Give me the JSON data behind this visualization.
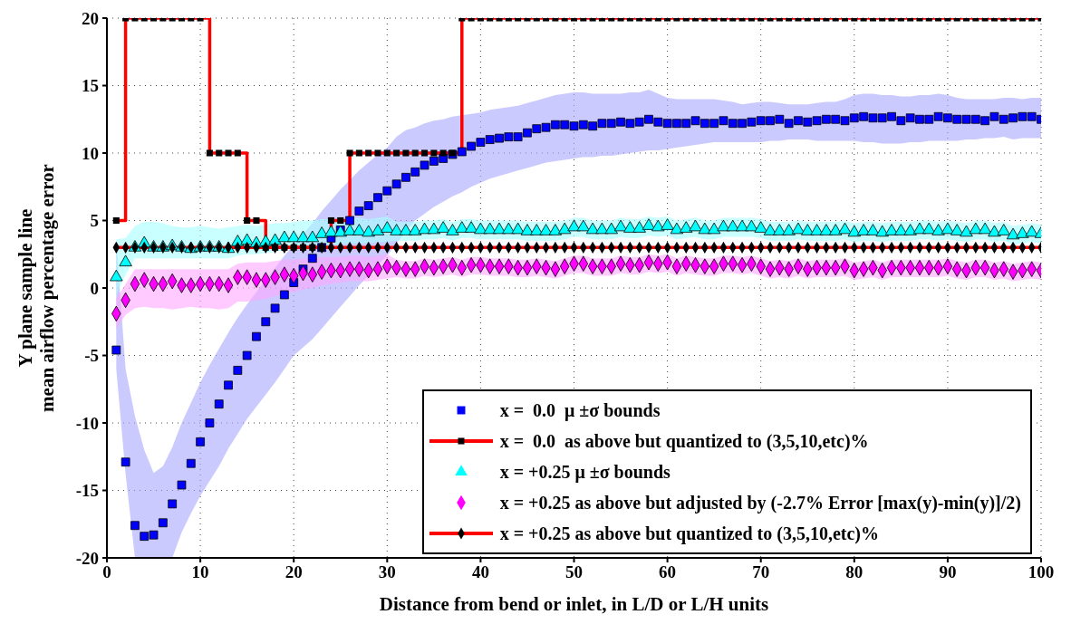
{
  "chart_data": {
    "type": "scatter",
    "xlabel": "Distance from bend or inlet, in L/D or L/H units",
    "ylabel": "Y plane sample line\nmean airflow percentage error",
    "xlim": [
      0,
      100
    ],
    "xticks": [
      0,
      10,
      20,
      30,
      40,
      50,
      60,
      70,
      80,
      90,
      100
    ],
    "ylim": [
      -20,
      20
    ],
    "yticks": [
      -20,
      -15,
      -10,
      -5,
      0,
      5,
      10,
      15,
      20
    ],
    "grid": true,
    "legend": "bottom right",
    "x": [
      1,
      2,
      3,
      4,
      5,
      6,
      7,
      8,
      9,
      10,
      11,
      12,
      13,
      14,
      15,
      16,
      17,
      18,
      19,
      20,
      21,
      22,
      23,
      24,
      25,
      26,
      27,
      28,
      29,
      30,
      31,
      32,
      33,
      34,
      35,
      36,
      37,
      38,
      39,
      40,
      41,
      42,
      43,
      44,
      45,
      46,
      47,
      48,
      49,
      50,
      51,
      52,
      53,
      54,
      55,
      56,
      57,
      58,
      59,
      60,
      61,
      62,
      63,
      64,
      65,
      66,
      67,
      68,
      69,
      70,
      71,
      72,
      73,
      74,
      75,
      76,
      77,
      78,
      79,
      80,
      81,
      82,
      83,
      84,
      85,
      86,
      87,
      88,
      89,
      90,
      91,
      92,
      93,
      94,
      95,
      96,
      97,
      98,
      99,
      100
    ],
    "series": [
      {
        "name": "x =  0.0  μ ±σ bounds",
        "marker": "square",
        "color": "#0000ff",
        "values": [
          -4.6,
          -12.9,
          -17.6,
          -18.4,
          -18.3,
          -17.4,
          -16.0,
          -14.6,
          -13.0,
          -11.4,
          -10.0,
          -8.6,
          -7.2,
          -6.1,
          -5.0,
          -3.6,
          -2.5,
          -1.5,
          -0.5,
          0.4,
          1.4,
          2.2,
          3.0,
          3.7,
          4.3,
          5.0,
          5.7,
          6.1,
          6.7,
          7.2,
          7.7,
          8.2,
          8.6,
          9.1,
          9.4,
          9.6,
          9.9,
          10.1,
          10.5,
          10.8,
          11.0,
          11.1,
          11.2,
          11.2,
          11.5,
          11.8,
          11.9,
          12.1,
          12.1,
          12.0,
          12.1,
          12.0,
          12.2,
          12.2,
          12.3,
          12.2,
          12.3,
          12.5,
          12.3,
          12.2,
          12.2,
          12.2,
          12.4,
          12.2,
          12.2,
          12.4,
          12.2,
          12.2,
          12.3,
          12.4,
          12.4,
          12.5,
          12.2,
          12.4,
          12.3,
          12.4,
          12.5,
          12.5,
          12.4,
          12.6,
          12.7,
          12.6,
          12.6,
          12.7,
          12.4,
          12.6,
          12.5,
          12.5,
          12.7,
          12.6,
          12.5,
          12.5,
          12.5,
          12.4,
          12.7,
          12.5,
          12.6,
          12.7,
          12.7,
          12.5
        ],
        "lower": [
          -6,
          -13.8,
          -20,
          -20,
          -20,
          -20,
          -20,
          -18.1,
          -16.7,
          -15.4,
          -14.3,
          -13.2,
          -11.9,
          -10.8,
          -9.7,
          -8.8,
          -7.9,
          -7.0,
          -6.0,
          -5.0,
          -4.4,
          -3.8,
          -3.0,
          -2.2,
          -1.4,
          -0.6,
          0.2,
          0.9,
          1.7,
          2.4,
          3.3,
          4.2,
          5.0,
          5.5,
          6.0,
          6.4,
          6.8,
          7.1,
          7.5,
          7.8,
          8.1,
          8.3,
          8.5,
          8.7,
          8.9,
          9.1,
          9.3,
          9.4,
          9.5,
          9.6,
          9.7,
          9.7,
          9.8,
          9.8,
          9.9,
          10.0,
          10.1,
          10.2,
          10.2,
          10.3,
          10.4,
          10.5,
          10.6,
          10.7,
          10.8,
          10.8,
          10.8,
          10.8,
          10.8,
          10.8,
          10.9,
          10.9,
          11.0,
          11.0,
          11.0,
          10.9,
          10.9,
          10.9,
          10.9,
          10.9,
          10.8,
          10.8,
          10.7,
          10.7,
          10.7,
          10.8,
          10.8,
          10.9,
          10.9,
          10.9,
          10.9,
          11.0,
          11.0,
          11.1,
          11.1,
          11.2,
          11.0,
          11.1,
          11.1,
          11.1
        ],
        "upper": [
          3.5,
          -6,
          -9.5,
          -12,
          -13.7,
          -13.2,
          -11.8,
          -10,
          -8.5,
          -7,
          -5.7,
          -4.5,
          -3.3,
          -2.2,
          -1.2,
          -0.3,
          0.6,
          1.5,
          2.4,
          3.2,
          4.0,
          4.8,
          5.7,
          6.5,
          7.3,
          8.0,
          8.7,
          9.3,
          9.9,
          10.4,
          11.2,
          11.7,
          11.9,
          12.2,
          12.4,
          12.5,
          12.7,
          12.8,
          12.9,
          13.0,
          13.2,
          13.3,
          13.4,
          13.5,
          13.7,
          13.9,
          14.1,
          14.3,
          14.4,
          14.5,
          14.5,
          14.4,
          14.4,
          14.4,
          14.4,
          14.5,
          14.5,
          14.7,
          14.4,
          14.1,
          14.0,
          14.0,
          14.0,
          14.0,
          14.0,
          13.9,
          13.8,
          13.6,
          13.7,
          13.8,
          13.8,
          13.7,
          13.6,
          13.6,
          13.6,
          13.7,
          13.8,
          13.8,
          14.0,
          14.3,
          14.4,
          14.4,
          14.3,
          14.3,
          14.2,
          14.2,
          14.3,
          14.3,
          14.4,
          14.3,
          14.1,
          14.0,
          14.0,
          14.0,
          14.0,
          14.1,
          14.1,
          14.0,
          14.1,
          14.1
        ]
      },
      {
        "name": "x =  0.0  as above but quantized to (3,5,10,etc)%",
        "type": "step",
        "marker": "square",
        "color": "#ff0000",
        "values": [
          5,
          20,
          20,
          20,
          20,
          20,
          20,
          20,
          20,
          20,
          10,
          10,
          10,
          10,
          5,
          5,
          3,
          3,
          3,
          3,
          3,
          3,
          3,
          5,
          5,
          10,
          10,
          10,
          10,
          10,
          10,
          10,
          10,
          10,
          10,
          10,
          10,
          20,
          20,
          20,
          20,
          20,
          20,
          20,
          20,
          20,
          20,
          20,
          20,
          20,
          20,
          20,
          20,
          20,
          20,
          20,
          20,
          20,
          20,
          20,
          20,
          20,
          20,
          20,
          20,
          20,
          20,
          20,
          20,
          20,
          20,
          20,
          20,
          20,
          20,
          20,
          20,
          20,
          20,
          20,
          20,
          20,
          20,
          20,
          20,
          20,
          20,
          20,
          20,
          20,
          20,
          20,
          20,
          20,
          20,
          20,
          20,
          20,
          20,
          20
        ]
      },
      {
        "name": "x = +0.25 μ ±σ bounds",
        "marker": "triangle",
        "color": "#00ffff",
        "values": [
          0.8,
          1.9,
          3.0,
          3.3,
          3.0,
          3.0,
          3.1,
          3.0,
          2.9,
          3.0,
          3.0,
          3.0,
          2.9,
          3.4,
          3.5,
          3.3,
          3.4,
          3.5,
          3.7,
          3.7,
          3.7,
          3.7,
          4.0,
          4.1,
          4.1,
          4.2,
          4.2,
          4.1,
          4.2,
          4.4,
          4.2,
          4.2,
          4.2,
          4.3,
          4.3,
          4.4,
          4.2,
          4.4,
          4.4,
          4.3,
          4.3,
          4.3,
          4.3,
          4.3,
          4.2,
          4.2,
          4.2,
          4.2,
          4.3,
          4.5,
          4.5,
          4.3,
          4.3,
          4.3,
          4.5,
          4.4,
          4.4,
          4.6,
          4.5,
          4.6,
          4.3,
          4.4,
          4.5,
          4.3,
          4.3,
          4.5,
          4.5,
          4.5,
          4.5,
          4.4,
          4.2,
          4.2,
          4.2,
          4.3,
          4.2,
          4.2,
          4.2,
          4.2,
          4.3,
          4.1,
          4.2,
          4.2,
          4.1,
          4.2,
          4.2,
          4.2,
          4.3,
          4.3,
          4.2,
          4.3,
          4.2,
          4.1,
          4.3,
          4.3,
          4.1,
          4.2,
          3.9,
          4.0,
          4.1,
          4.0
        ],
        "lower": [
          -0.5,
          1.0,
          2.2,
          2.2,
          2.2,
          2.2,
          2.2,
          2.2,
          2.2,
          2.2,
          2.2,
          2.2,
          2.2,
          2.4,
          2.5,
          2.5,
          2.6,
          2.7,
          2.8,
          2.9,
          3.0,
          3.0,
          3.1,
          3.2,
          3.2,
          3.3,
          3.3,
          3.3,
          3.4,
          3.4,
          3.5,
          3.5,
          3.5,
          3.6,
          3.6,
          3.7,
          3.5,
          3.7,
          3.7,
          3.6,
          3.6,
          3.6,
          3.6,
          3.6,
          3.5,
          3.5,
          3.5,
          3.5,
          3.6,
          3.8,
          3.8,
          3.6,
          3.6,
          3.6,
          3.8,
          3.7,
          3.7,
          3.9,
          3.8,
          3.9,
          3.6,
          3.7,
          3.8,
          3.6,
          3.6,
          3.8,
          3.8,
          3.8,
          3.8,
          3.7,
          3.5,
          3.5,
          3.5,
          3.6,
          3.5,
          3.5,
          3.5,
          3.5,
          3.6,
          3.4,
          3.5,
          3.5,
          3.4,
          3.5,
          3.5,
          3.5,
          3.6,
          3.6,
          3.5,
          3.6,
          3.5,
          3.4,
          3.6,
          3.6,
          3.4,
          3.5,
          3.2,
          3.3,
          3.4,
          3.3
        ],
        "upper": [
          3.6,
          3.7,
          4.6,
          4.9,
          4.9,
          4.8,
          4.6,
          4.5,
          4.5,
          4.6,
          4.5,
          4.4,
          4.5,
          4.6,
          4.7,
          4.6,
          4.7,
          4.8,
          4.8,
          4.9,
          5.0,
          5.0,
          5.1,
          5.1,
          5.1,
          5.2,
          5.2,
          5.1,
          5.2,
          5.3,
          4.9,
          4.9,
          4.9,
          5.0,
          5.0,
          5.1,
          4.9,
          5.1,
          5.1,
          5.0,
          5.0,
          5.0,
          5.0,
          5.0,
          4.9,
          4.9,
          4.9,
          4.9,
          5.0,
          5.2,
          5.2,
          5.0,
          5.0,
          5.0,
          5.2,
          5.1,
          5.1,
          5.3,
          5.2,
          5.3,
          5.0,
          5.1,
          5.2,
          5.0,
          5.0,
          5.2,
          5.2,
          5.2,
          5.2,
          5.1,
          4.9,
          4.9,
          4.9,
          5.0,
          4.9,
          4.9,
          4.9,
          4.9,
          5.0,
          4.8,
          4.9,
          4.9,
          4.8,
          4.9,
          4.9,
          4.9,
          5.0,
          5.0,
          4.9,
          5.0,
          4.9,
          4.8,
          5.0,
          5.0,
          4.8,
          4.9,
          4.6,
          4.7,
          4.8,
          4.7
        ]
      },
      {
        "name": "x = +0.25 as above but adjusted by (-2.7% Error [max(y)-min(y)]/2)",
        "marker": "diamond",
        "color": "#ff00ff",
        "values": [
          -1.9,
          -0.9,
          0.3,
          0.6,
          0.3,
          0.3,
          0.5,
          0.2,
          0.2,
          0.3,
          0.3,
          0.3,
          0.2,
          0.8,
          0.8,
          0.6,
          0.6,
          0.8,
          1.0,
          0.9,
          1.1,
          1.0,
          1.2,
          1.3,
          1.3,
          1.4,
          1.4,
          1.3,
          1.4,
          1.6,
          1.5,
          1.4,
          1.4,
          1.6,
          1.5,
          1.6,
          1.7,
          1.5,
          1.7,
          1.7,
          1.6,
          1.6,
          1.6,
          1.5,
          1.5,
          1.6,
          1.5,
          1.4,
          1.6,
          1.8,
          1.8,
          1.6,
          1.6,
          1.6,
          1.8,
          1.7,
          1.7,
          1.9,
          1.8,
          1.9,
          1.6,
          1.8,
          1.7,
          1.6,
          1.6,
          1.8,
          1.8,
          1.7,
          1.8,
          1.6,
          1.4,
          1.5,
          1.4,
          1.6,
          1.4,
          1.5,
          1.5,
          1.5,
          1.6,
          1.3,
          1.4,
          1.5,
          1.3,
          1.5,
          1.5,
          1.5,
          1.5,
          1.5,
          1.5,
          1.6,
          1.4,
          1.3,
          1.5,
          1.5,
          1.3,
          1.4,
          1.2,
          1.3,
          1.4,
          1.3
        ],
        "lower": [
          -3.0,
          -2.0,
          -1.5,
          -1.4,
          -1.5,
          -1.5,
          -1.6,
          -1.5,
          -1.4,
          -1.5,
          -1.5,
          -1.6,
          -1.5,
          -1.0,
          -1.0,
          -0.9,
          -0.8,
          -0.6,
          -0.4,
          -0.3,
          -0.1,
          0.0,
          0.2,
          0.3,
          0.4,
          0.5,
          0.5,
          0.5,
          0.6,
          0.7,
          0.8,
          0.7,
          0.7,
          0.9,
          0.8,
          0.9,
          1.0,
          0.8,
          1.0,
          1.0,
          0.9,
          0.9,
          0.9,
          0.8,
          0.8,
          0.9,
          0.8,
          0.7,
          0.9,
          1.1,
          1.1,
          0.9,
          0.9,
          0.9,
          1.1,
          1.0,
          1.0,
          1.2,
          1.1,
          1.2,
          0.9,
          1.1,
          1.0,
          0.9,
          0.9,
          1.1,
          1.1,
          1.0,
          1.1,
          0.9,
          0.7,
          0.8,
          0.7,
          0.9,
          0.7,
          0.8,
          0.8,
          0.8,
          0.9,
          0.6,
          0.7,
          0.8,
          0.6,
          0.8,
          0.8,
          0.8,
          0.8,
          0.8,
          0.8,
          0.9,
          0.7,
          0.6,
          0.8,
          0.8,
          0.6,
          0.7,
          0.5,
          0.6,
          0.7,
          0.6
        ],
        "upper": [
          -0.8,
          0.3,
          1.4,
          1.4,
          1.4,
          1.4,
          1.4,
          1.4,
          1.4,
          1.4,
          1.4,
          1.4,
          1.4,
          1.8,
          1.9,
          1.9,
          1.9,
          2.0,
          2.1,
          2.1,
          2.2,
          2.2,
          2.3,
          2.3,
          2.3,
          2.4,
          2.4,
          2.3,
          2.4,
          2.5,
          2.1,
          2.0,
          2.0,
          2.2,
          2.1,
          2.2,
          2.3,
          2.1,
          2.3,
          2.3,
          2.2,
          2.2,
          2.2,
          2.1,
          2.1,
          2.2,
          2.1,
          2.0,
          2.2,
          2.4,
          2.4,
          2.2,
          2.2,
          2.2,
          2.4,
          2.3,
          2.3,
          2.5,
          2.4,
          2.5,
          2.2,
          2.4,
          2.3,
          2.2,
          2.2,
          2.4,
          2.4,
          2.3,
          2.4,
          2.2,
          2.0,
          2.1,
          2.0,
          2.2,
          2.0,
          2.1,
          2.1,
          2.1,
          2.2,
          1.9,
          2.0,
          2.1,
          1.9,
          2.1,
          2.1,
          2.1,
          2.1,
          2.1,
          2.1,
          2.2,
          2.0,
          1.9,
          2.1,
          2.1,
          1.9,
          2.0,
          1.8,
          1.9,
          2.0,
          1.9
        ]
      },
      {
        "name": "x = +0.25 as above but quantized to (3,5,10,etc)%",
        "type": "line",
        "marker": "diamond",
        "color": "#ff0000",
        "values": [
          3,
          3,
          3,
          3,
          3,
          3,
          3,
          3,
          3,
          3,
          3,
          3,
          3,
          3,
          3,
          3,
          3,
          3,
          3,
          3,
          3,
          3,
          3,
          3,
          3,
          3,
          3,
          3,
          3,
          3,
          3,
          3,
          3,
          3,
          3,
          3,
          3,
          3,
          3,
          3,
          3,
          3,
          3,
          3,
          3,
          3,
          3,
          3,
          3,
          3,
          3,
          3,
          3,
          3,
          3,
          3,
          3,
          3,
          3,
          3,
          3,
          3,
          3,
          3,
          3,
          3,
          3,
          3,
          3,
          3,
          3,
          3,
          3,
          3,
          3,
          3,
          3,
          3,
          3,
          3,
          3,
          3,
          3,
          3,
          3,
          3,
          3,
          3,
          3,
          3,
          3,
          3,
          3,
          3,
          3,
          3,
          3,
          3,
          3,
          3
        ]
      }
    ]
  }
}
